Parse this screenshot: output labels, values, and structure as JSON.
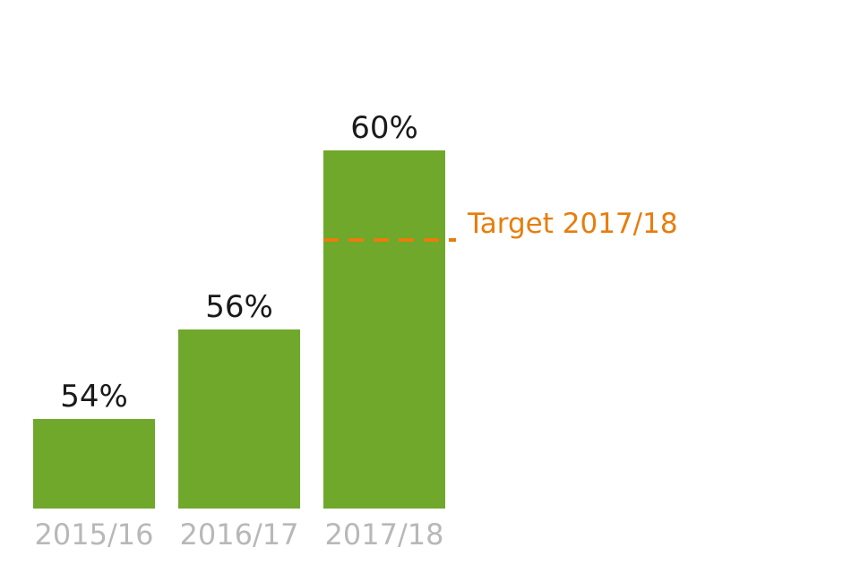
{
  "chart_data": {
    "type": "bar",
    "categories": [
      "2015/16",
      "2016/17",
      "2017/18"
    ],
    "values": [
      54,
      56,
      60
    ],
    "value_labels": [
      "54%",
      "56%",
      "60%"
    ],
    "ylim": [
      52,
      62
    ],
    "target": {
      "label": "Target 2017/18",
      "value": 58,
      "category": "2017/18"
    },
    "colors": {
      "bar": "#6fa82b",
      "target": "#e87d0c",
      "category_text": "#b8b8b8",
      "value_text": "#1a1a1a"
    }
  }
}
